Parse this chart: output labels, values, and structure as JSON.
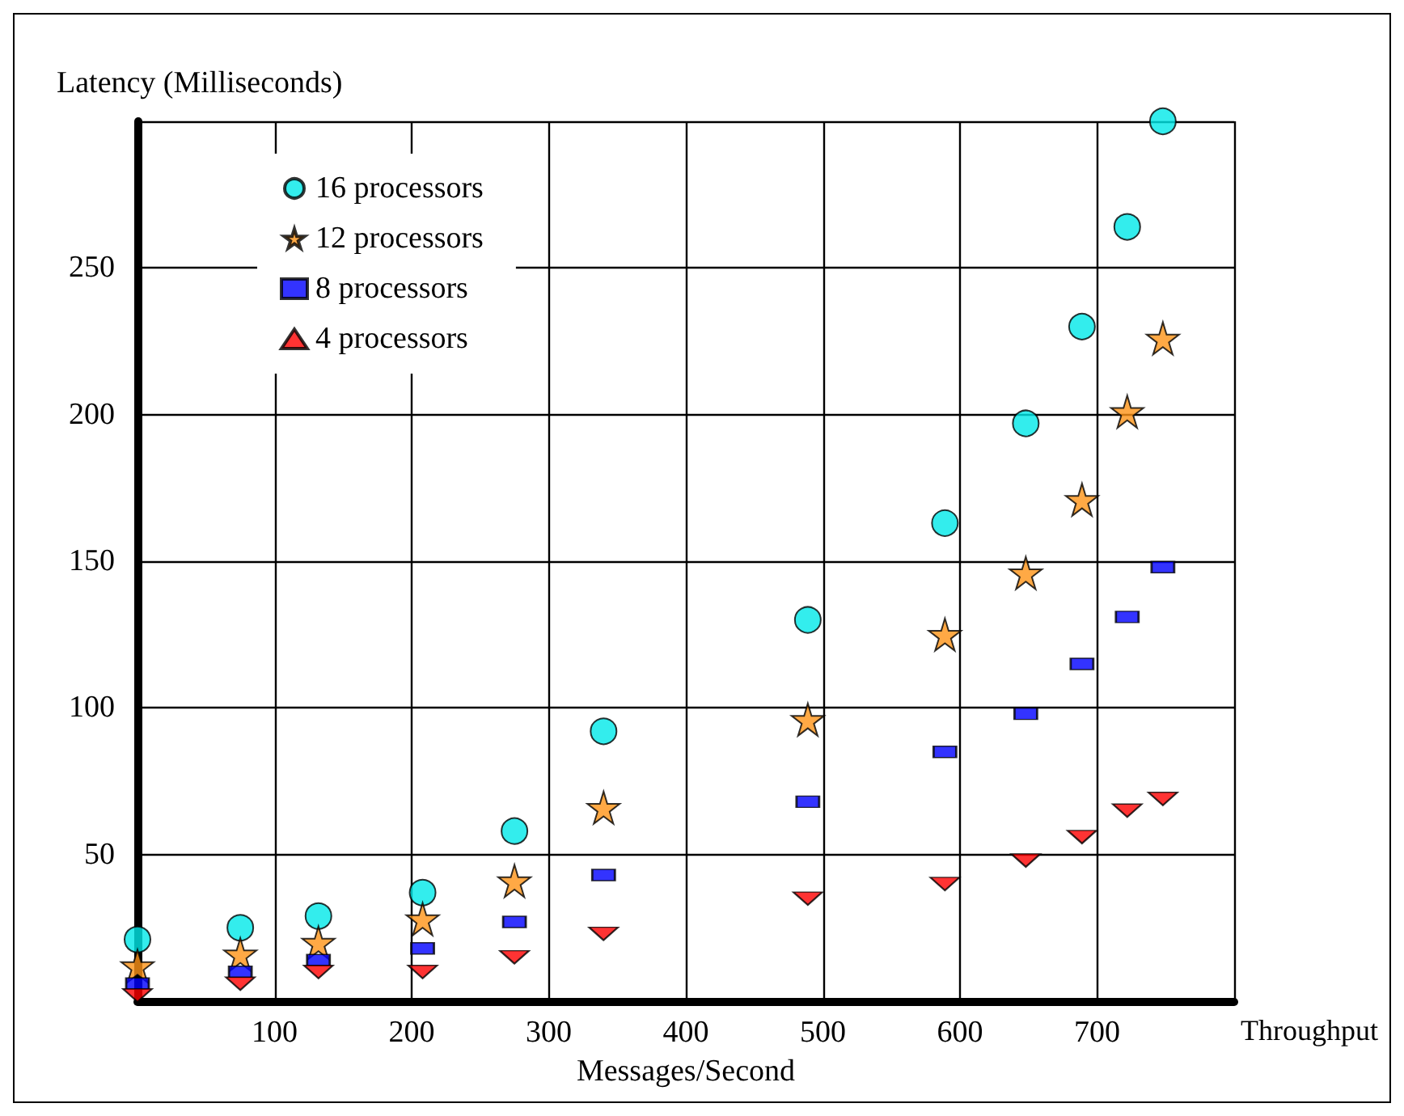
{
  "chart_data": {
    "type": "scatter",
    "xlabel": "Messages/Second",
    "ylabel": "Latency (Milliseconds)",
    "annotations": [
      "Throughput"
    ],
    "x": [
      0,
      75,
      132,
      208,
      275,
      340,
      489,
      589,
      648,
      689,
      722,
      748
    ],
    "series": [
      {
        "name": "16 processors",
        "color": "#00e8e8",
        "marker": "circle",
        "values": [
          21,
          25,
          29,
          37,
          58,
          92,
          130,
          163,
          197,
          230,
          264,
          300
        ]
      },
      {
        "name": "12 processors",
        "color": "#ff9416",
        "marker": "star",
        "values": [
          12,
          16,
          20,
          28,
          41,
          66,
          96,
          125,
          146,
          171,
          201,
          226
        ]
      },
      {
        "name": "8 processors",
        "color": "#0000ff",
        "marker": "square",
        "values": [
          6,
          10,
          14,
          18,
          27,
          43,
          68,
          85,
          98,
          115,
          131,
          148
        ]
      },
      {
        "name": "4 processors",
        "color": "#ff0000",
        "marker": "triangle",
        "values": [
          2,
          6,
          10,
          10,
          15,
          23,
          35,
          40,
          48,
          56,
          65,
          69
        ]
      }
    ],
    "xlim": [
      0,
      800
    ],
    "ylim": [
      0,
      300
    ],
    "xticks": [
      100,
      200,
      300,
      400,
      500,
      600,
      700
    ],
    "yticks": [
      50,
      100,
      150,
      200,
      250
    ],
    "grid": true,
    "legend": "top left"
  }
}
